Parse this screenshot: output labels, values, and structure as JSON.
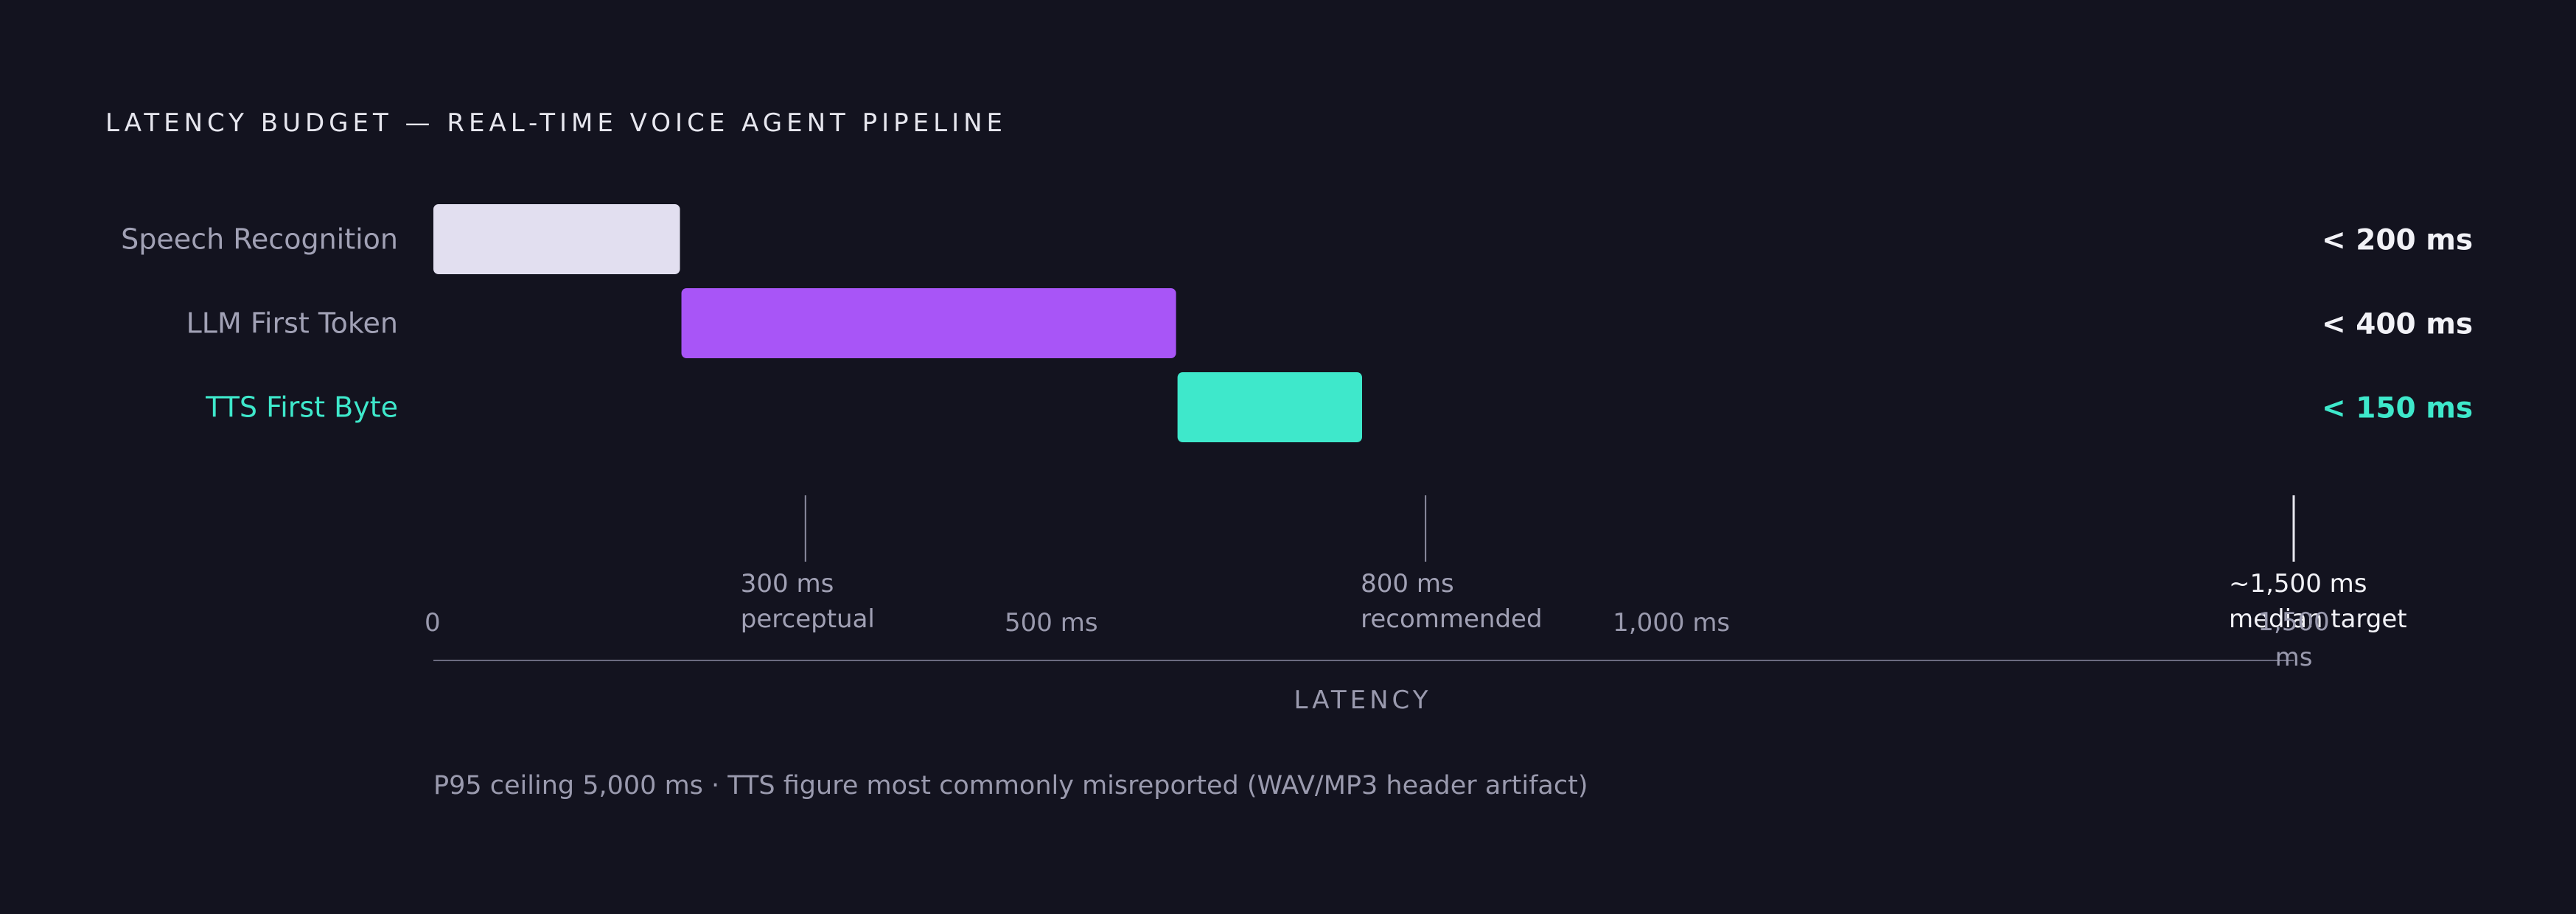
{
  "chart_data": {
    "type": "bar",
    "title": "LATENCY BUDGET — REAL-TIME VOICE AGENT PIPELINE",
    "xlabel": "LATENCY",
    "x_unit": "ms",
    "xlim": [
      0,
      1500
    ],
    "series": [
      {
        "name": "Speech Recognition",
        "start": 0,
        "end": 200,
        "value_label": "< 200 ms",
        "color": "#e2dff0",
        "label_color": "#a1a1b5",
        "value_color": "#f2f2f7"
      },
      {
        "name": "LLM First Token",
        "start": 200,
        "end": 600,
        "value_label": "< 400 ms",
        "color": "#a855f7",
        "label_color": "#a1a1b5",
        "value_color": "#f2f2f7"
      },
      {
        "name": "TTS First Byte",
        "start": 600,
        "end": 750,
        "value_label": "< 150 ms",
        "color": "#3ee8cb",
        "label_color": "#3ee8cb",
        "value_color": "#3ee8cb"
      }
    ],
    "ticks": [
      {
        "value": 0,
        "label": "0"
      },
      {
        "value": 500,
        "label": "500 ms"
      },
      {
        "value": 1000,
        "label": "1,000 ms"
      },
      {
        "value": 1500,
        "label": "1,500 ms"
      }
    ],
    "markers": [
      {
        "value": 300,
        "line1": "300 ms",
        "line2": "perceptual",
        "color": "#a1a1b5"
      },
      {
        "value": 800,
        "line1": "800 ms",
        "line2": "recommended",
        "color": "#a1a1b5"
      },
      {
        "value": 1500,
        "line1": "~1,500 ms",
        "line2": "median target",
        "color": "#f2f2f7"
      }
    ],
    "footnote": "P95 ceiling 5,000 ms · TTS figure most commonly misreported (WAV/MP3 header artifact)",
    "colors": {
      "background": "#13131f",
      "title": "#e7e7ef",
      "axis": "#6b6b80",
      "tick_text": "#9a9aae",
      "marker_line": "#8c8ca0",
      "marker_line_emphasis": "#e7e7ef",
      "footnote": "#9a9aae"
    }
  }
}
